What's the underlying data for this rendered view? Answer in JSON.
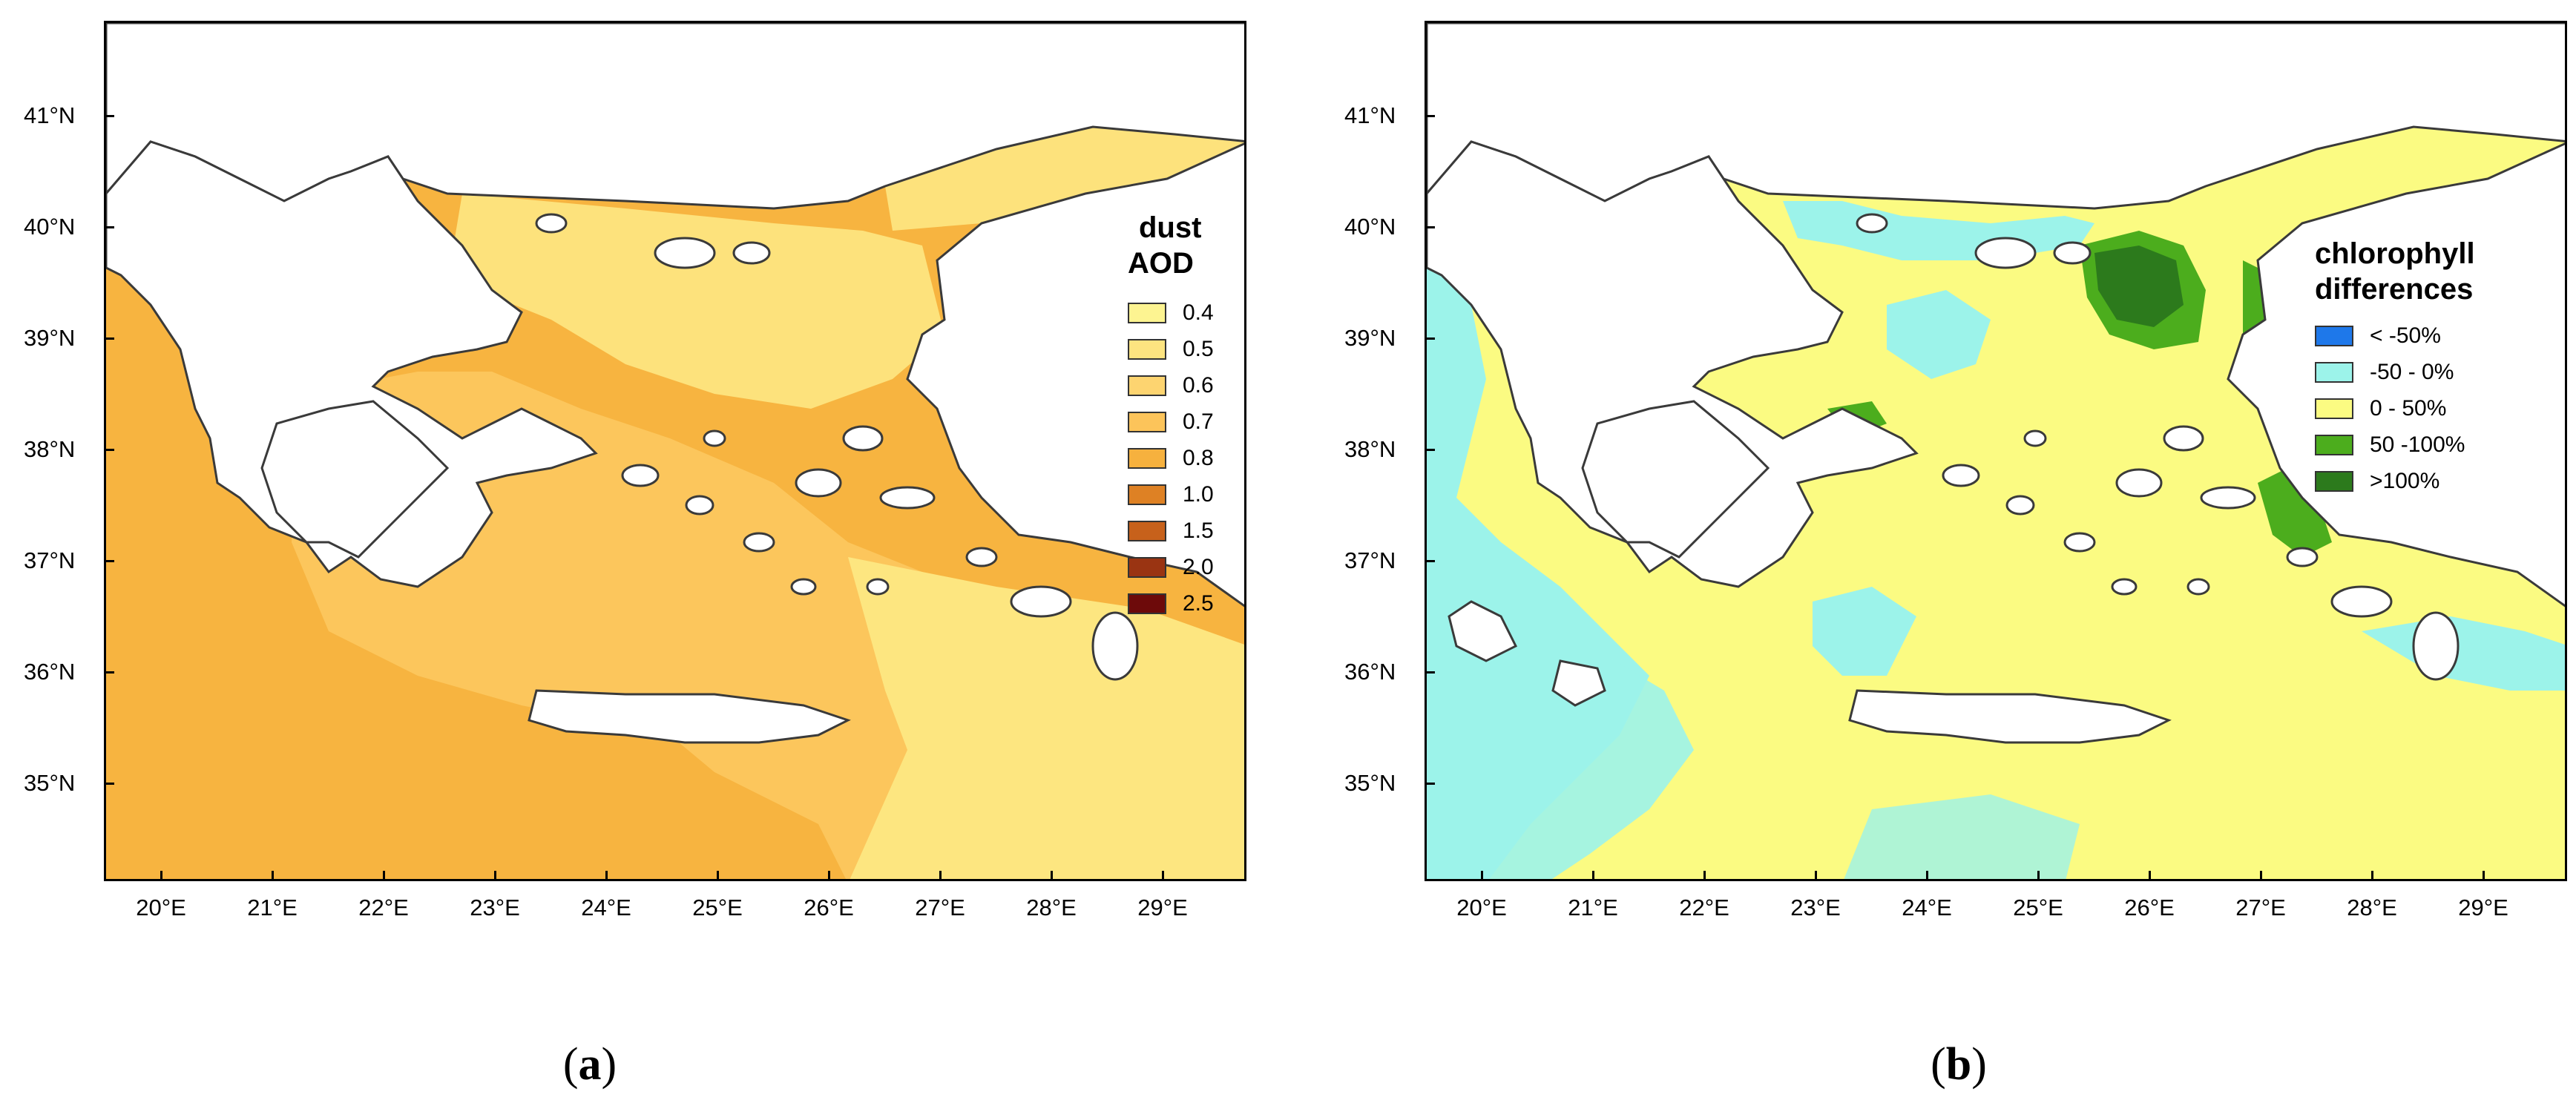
{
  "panels": [
    {
      "id": "a",
      "caption_letter": "a",
      "legend": {
        "title_line1": "dust",
        "title_line2": "AOD",
        "items": [
          {
            "label": "0.4",
            "color": "#fdf491"
          },
          {
            "label": "0.5",
            "color": "#fde480"
          },
          {
            "label": "0.6",
            "color": "#fdd470"
          },
          {
            "label": "0.7",
            "color": "#fcc45a"
          },
          {
            "label": "0.8",
            "color": "#f6b13e"
          },
          {
            "label": "1.0",
            "color": "#de8124"
          },
          {
            "label": "1.5",
            "color": "#c7611b"
          },
          {
            "label": "2.0",
            "color": "#9a3412"
          },
          {
            "label": "2.5",
            "color": "#6d0a0a"
          }
        ]
      }
    },
    {
      "id": "b",
      "caption_letter": "b",
      "legend": {
        "title_line1": "chlorophyll",
        "title_line2": "differences",
        "items": [
          {
            "label": "< -50%",
            "color": "#1e78ea"
          },
          {
            "label": "-50 - 0%",
            "color": "#9cf3ea"
          },
          {
            "label": "0 - 50%",
            "color": "#fbfb82"
          },
          {
            "label": "50 -100%",
            "color": "#4cad1d"
          },
          {
            "label": ">100%",
            "color": "#2c7a1c"
          }
        ]
      }
    }
  ],
  "axes": {
    "lat_labels": [
      "41°N",
      "40°N",
      "39°N",
      "38°N",
      "37°N",
      "36°N",
      "35°N"
    ],
    "lon_labels": [
      "20°E",
      "21°E",
      "22°E",
      "23°E",
      "24°E",
      "25°E",
      "26°E",
      "27°E",
      "28°E",
      "29°E"
    ]
  },
  "colors": {
    "land": "#ffffff",
    "coast": "#3a3a3a",
    "aod_sea_outer": "#f7b440",
    "aod_sea_mid": "#fcc65c",
    "aod_sea_north": "#fde27c",
    "aod_sea_east": "#fde680",
    "chl_sea": "#fbfb82",
    "chl_low": "#9cf3ea",
    "chl_high": "#4cad1d",
    "chl_vhigh": "#2c7a1c"
  }
}
